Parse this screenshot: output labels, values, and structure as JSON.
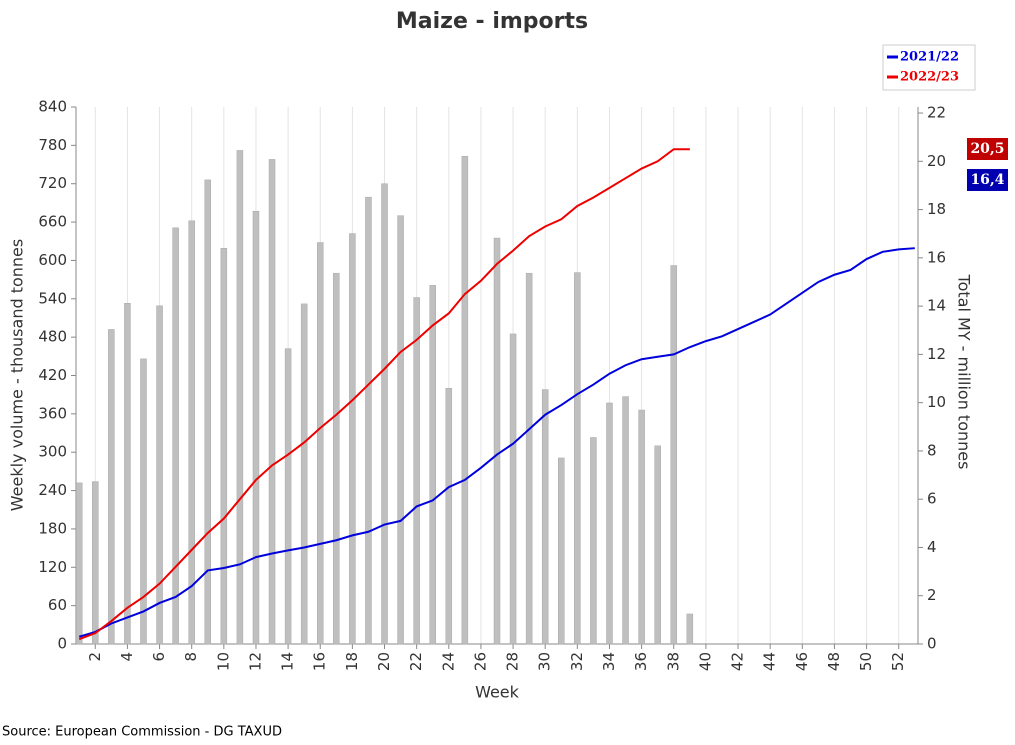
{
  "chart_data": {
    "type": "bar-line",
    "title": "Maize - imports",
    "x_label": "Week",
    "y_label": "Weekly volume - thousand tonnes",
    "y2_label": "Total MY - million tonnes",
    "source": "Source: European Commission - DG TAXUD",
    "xlim": [
      0.8,
      53.2
    ],
    "xticks": [
      2,
      4,
      6,
      8,
      10,
      12,
      14,
      16,
      18,
      20,
      22,
      24,
      26,
      28,
      30,
      32,
      34,
      36,
      38,
      40,
      42,
      44,
      46,
      48,
      50,
      52
    ],
    "ylim": [
      0,
      840
    ],
    "yticks": [
      0,
      60,
      120,
      180,
      240,
      300,
      360,
      420,
      480,
      540,
      600,
      660,
      720,
      780,
      840
    ],
    "y2lim": [
      0,
      22.25
    ],
    "y2ticks": [
      0,
      2,
      4,
      6,
      8,
      10,
      12,
      14,
      16,
      18,
      20,
      22
    ],
    "grid": "x",
    "legend": "top-right",
    "bars": {
      "color": "#bfbfbf",
      "x": [
        1,
        2,
        3,
        4,
        5,
        6,
        7,
        8,
        9,
        10,
        11,
        12,
        13,
        14,
        15,
        16,
        17,
        18,
        19,
        20,
        21,
        22,
        23,
        24,
        25,
        26,
        27,
        28,
        29,
        30,
        31,
        32,
        33,
        34,
        35,
        36,
        37,
        38,
        39
      ],
      "values": [
        252,
        254,
        492,
        533,
        446,
        529,
        651,
        662,
        726,
        619,
        772,
        677,
        758,
        462,
        532,
        628,
        580,
        642,
        699,
        720,
        670,
        542,
        561,
        400,
        763,
        null,
        635,
        485,
        580,
        398,
        291,
        581,
        323,
        377,
        387,
        366,
        310,
        592,
        47
      ]
    },
    "series": [
      {
        "name": "2021/22",
        "color": "#0000dd",
        "axis": "y2",
        "x": [
          1,
          2,
          3,
          4,
          5,
          6,
          7,
          8,
          9,
          10,
          11,
          12,
          13,
          14,
          15,
          16,
          17,
          18,
          19,
          20,
          21,
          22,
          23,
          24,
          25,
          26,
          27,
          28,
          29,
          30,
          31,
          32,
          33,
          34,
          35,
          36,
          37,
          38,
          39,
          40,
          41,
          42,
          43,
          44,
          45,
          46,
          47,
          48,
          49,
          50,
          51,
          52,
          53
        ],
        "values": [
          0.3,
          0.5,
          0.85,
          1.1,
          1.35,
          1.7,
          1.95,
          2.4,
          3.05,
          3.15,
          3.3,
          3.6,
          3.75,
          3.88,
          4.0,
          4.15,
          4.3,
          4.5,
          4.65,
          4.95,
          5.1,
          5.7,
          5.95,
          6.5,
          6.8,
          7.3,
          7.85,
          8.3,
          8.9,
          9.5,
          9.9,
          10.35,
          10.75,
          11.2,
          11.55,
          11.8,
          11.9,
          12.0,
          12.3,
          12.55,
          12.75,
          13.05,
          13.35,
          13.65,
          14.1,
          14.55,
          15.0,
          15.3,
          15.5,
          15.95,
          16.25,
          16.35,
          16.4
        ],
        "value_labels": [
          null,
          null,
          null,
          null,
          null,
          null,
          null,
          null,
          null,
          null,
          null,
          null,
          null,
          null,
          null,
          null,
          null,
          null,
          null,
          null,
          null,
          null,
          null,
          null,
          null,
          null,
          null,
          null,
          null,
          null,
          null,
          null,
          null,
          null,
          null,
          null,
          null,
          null,
          null,
          null,
          null,
          null,
          null,
          null,
          null,
          null,
          null,
          null,
          null,
          null,
          null,
          null,
          "16,4"
        ]
      },
      {
        "name": "2022/23",
        "color": "#ee0000",
        "axis": "y2",
        "x": [
          1,
          2,
          3,
          4,
          5,
          6,
          7,
          8,
          9,
          10,
          11,
          12,
          13,
          14,
          15,
          16,
          17,
          18,
          19,
          20,
          21,
          22,
          23,
          24,
          25,
          26,
          27,
          28,
          29,
          30,
          31,
          32,
          33,
          34,
          35,
          36,
          37,
          38,
          39
        ],
        "values": [
          0.2,
          0.45,
          0.95,
          1.5,
          1.95,
          2.5,
          3.2,
          3.9,
          4.6,
          5.2,
          6.0,
          6.8,
          7.4,
          7.85,
          8.35,
          8.95,
          9.5,
          10.1,
          10.75,
          11.4,
          12.1,
          12.6,
          13.2,
          13.7,
          14.5,
          15.05,
          15.75,
          16.3,
          16.9,
          17.3,
          17.6,
          18.15,
          18.5,
          18.9,
          19.3,
          19.7,
          20.0,
          20.5,
          20.5
        ],
        "value_labels": [
          null,
          null,
          null,
          null,
          null,
          null,
          null,
          null,
          null,
          null,
          null,
          null,
          null,
          null,
          null,
          null,
          null,
          null,
          null,
          null,
          null,
          null,
          null,
          null,
          null,
          null,
          null,
          null,
          null,
          null,
          null,
          null,
          null,
          null,
          null,
          null,
          null,
          null,
          "20,5"
        ]
      }
    ]
  }
}
